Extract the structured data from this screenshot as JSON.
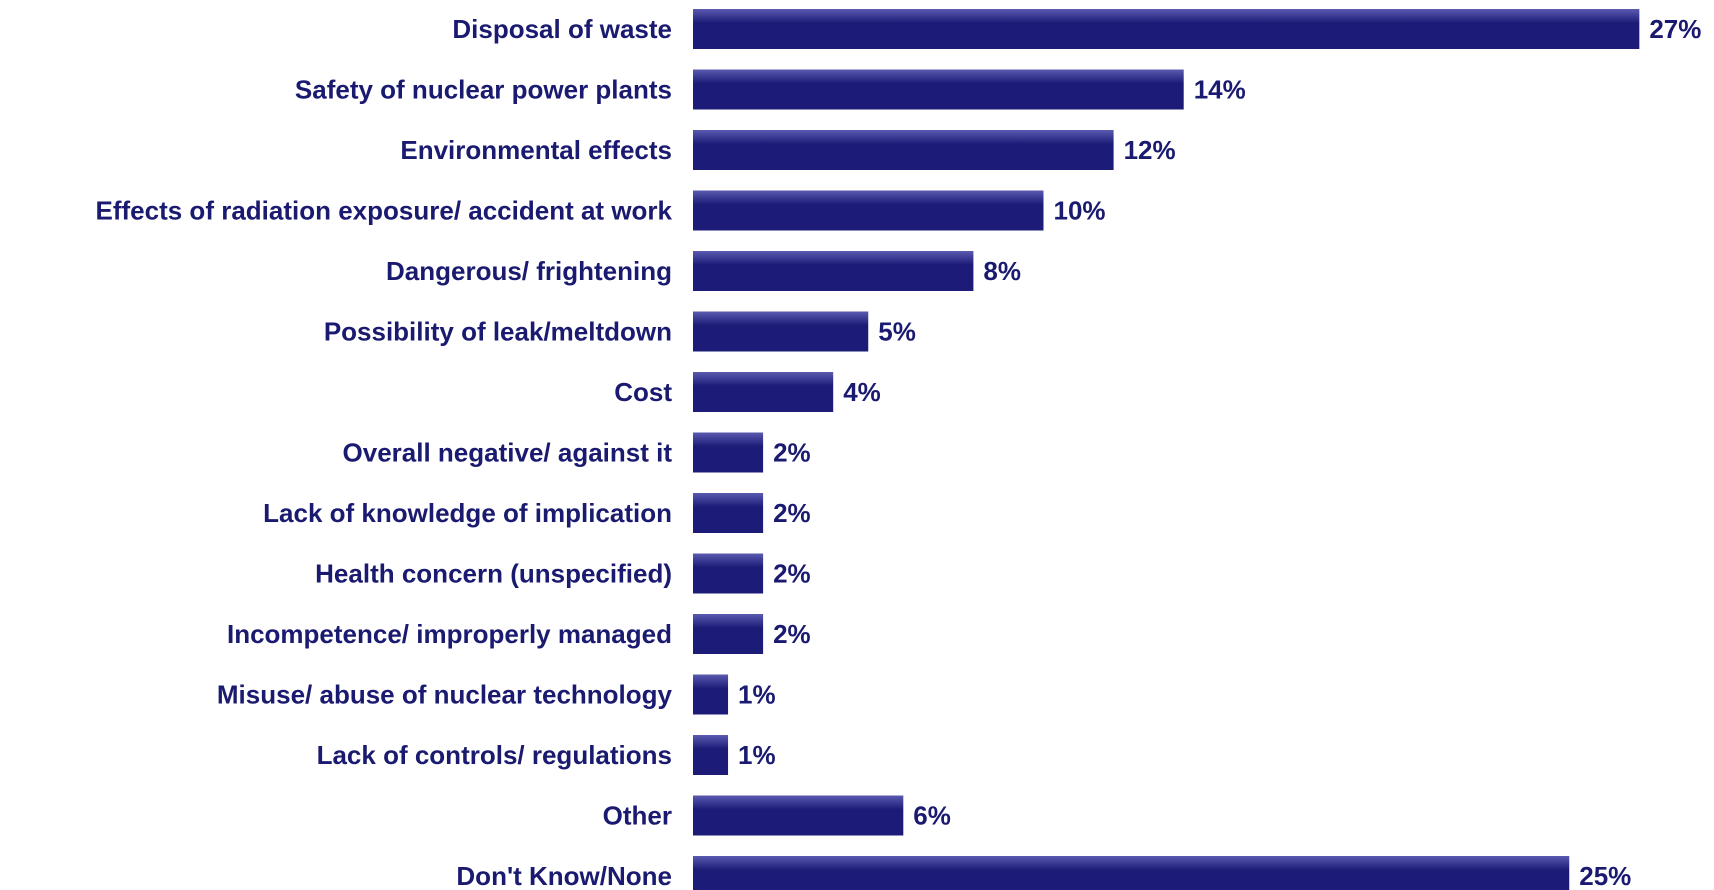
{
  "chart_data": {
    "type": "bar",
    "orientation": "horizontal",
    "categories": [
      "Disposal of waste",
      "Safety of nuclear power plants",
      "Environmental effects",
      "Effects of radiation exposure/ accident at work",
      "Dangerous/ frightening",
      "Possibility of leak/meltdown",
      "Cost",
      "Overall negative/ against it",
      "Lack of knowledge of implication",
      "Health concern (unspecified)",
      "Incompetence/ improperly managed",
      "Misuse/ abuse of nuclear technology",
      "Lack of controls/ regulations",
      "Other",
      "Don't Know/None"
    ],
    "values": [
      27,
      14,
      12,
      10,
      8,
      5,
      4,
      2,
      2,
      2,
      2,
      1,
      1,
      6,
      25
    ],
    "value_labels": [
      "27%",
      "14%",
      "12%",
      "10%",
      "8%",
      "5%",
      "4%",
      "2%",
      "2%",
      "2%",
      "2%",
      "1%",
      "1%",
      "6%",
      "25%"
    ],
    "unit": "%",
    "title": "",
    "xlabel": "",
    "ylabel": "",
    "grid": false,
    "legend": "none",
    "bar_color": "#1c1c78",
    "bar_highlight": "#5a5ab0",
    "text_color": "#1a1a70"
  }
}
